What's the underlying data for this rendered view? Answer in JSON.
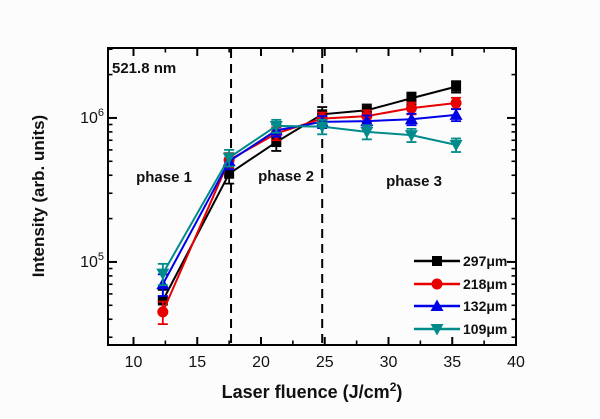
{
  "chart_data": {
    "type": "line",
    "title": "",
    "xlabel_pre": "Laser fluence (J/cm",
    "xlabel_sup": "2",
    "xlabel_post": ")",
    "ylabel": "Intensity (arb. units)",
    "xlim": [
      8,
      40
    ],
    "ylim": [
      26500,
      3060000
    ],
    "yscale": "log",
    "grid": false,
    "legend_position": "lower right",
    "x": [
      12.3,
      17.5,
      21.2,
      24.8,
      28.3,
      31.8,
      35.3
    ],
    "x_major_ticks": [
      10,
      15,
      20,
      25,
      30,
      35,
      40
    ],
    "x_minor_ticks": [
      12.5,
      17.5,
      22.5,
      27.5,
      32.5,
      37.5
    ],
    "y_major_ticks": [
      {
        "value": 100000,
        "base": "10",
        "exp": "5"
      },
      {
        "value": 1000000,
        "base": "10",
        "exp": "6"
      }
    ],
    "series": [
      {
        "name": "297μm",
        "color": "#000000",
        "marker": "square",
        "values": [
          54000,
          410000,
          680000,
          1060000,
          1130000,
          1370000,
          1650000
        ],
        "errors": [
          10000,
          60000,
          90000,
          130000,
          110000,
          130000,
          150000
        ]
      },
      {
        "name": "218μm",
        "color": "#e80000",
        "marker": "circle",
        "values": [
          45000,
          510000,
          780000,
          990000,
          1030000,
          1170000,
          1270000
        ],
        "errors": [
          8000,
          60000,
          80000,
          100000,
          100000,
          110000,
          110000
        ]
      },
      {
        "name": "132μm",
        "color": "#0000e8",
        "marker": "triangle-up",
        "values": [
          70000,
          500000,
          820000,
          940000,
          950000,
          980000,
          1050000
        ],
        "errors": [
          12000,
          60000,
          80000,
          90000,
          90000,
          90000,
          100000
        ]
      },
      {
        "name": "109μm",
        "color": "#008b8b",
        "marker": "triangle-down",
        "values": [
          83000,
          530000,
          880000,
          870000,
          800000,
          760000,
          650000
        ],
        "errors": [
          14000,
          70000,
          90000,
          100000,
          90000,
          80000,
          70000
        ]
      }
    ],
    "annotations": {
      "note": "521.8 nm",
      "phase_labels": [
        "phase 1",
        "phase 2",
        "phase 3"
      ],
      "vlines": [
        17.65,
        24.8
      ]
    }
  }
}
